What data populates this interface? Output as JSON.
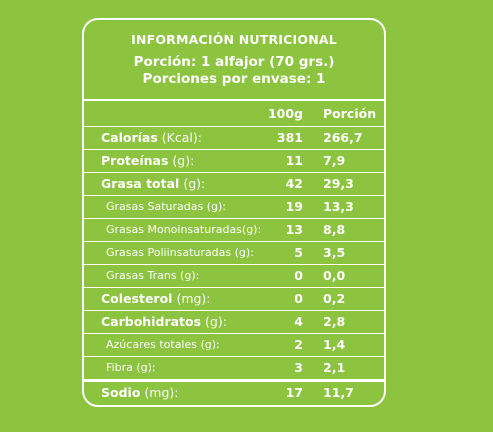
{
  "panel": {
    "title": "INFORMACIÓN NUTRICIONAL",
    "portion_line": "Porción: 1 alfajor (70 grs.)",
    "servings_line": "Porciones por envase: 1"
  },
  "columns": {
    "per100": "100g",
    "perPortion": "Porción"
  },
  "rows": [
    {
      "name": "Calorías",
      "unit": " (Kcal):",
      "per100": "381",
      "perPortion": "266,7"
    },
    {
      "name": "Proteínas",
      "unit": " (g):",
      "per100": "11",
      "perPortion": "7,9"
    },
    {
      "name": "Grasa total",
      "unit": " (g):",
      "per100": "42",
      "perPortion": "29,3"
    },
    {
      "name": "Grasas Saturadas (g):",
      "unit": "",
      "per100": "19",
      "perPortion": "13,3"
    },
    {
      "name": "Grasas Monoinsaturadas(g):",
      "unit": "",
      "per100": "13",
      "perPortion": "8,8"
    },
    {
      "name": "Grasas Poliinsaturadas (g):",
      "unit": "",
      "per100": "5",
      "perPortion": "3,5"
    },
    {
      "name": "Grasas Trans (g):",
      "unit": "",
      "per100": "0",
      "perPortion": "0,0"
    },
    {
      "name": "Colesterol",
      "unit": " (mg):",
      "per100": "0",
      "perPortion": "0,2"
    },
    {
      "name": "Carbohidratos",
      "unit": " (g):",
      "per100": "4",
      "perPortion": "2,8"
    },
    {
      "name": "Azúcares totales (g):",
      "unit": "",
      "per100": "2",
      "perPortion": "1,4"
    },
    {
      "name": "Fibra (g):",
      "unit": "",
      "per100": "3",
      "perPortion": "2,1"
    },
    {
      "name": "Sodio",
      "unit": " (mg):",
      "per100": "17",
      "perPortion": "11,7"
    }
  ],
  "colors": {
    "background": "#8cc43f",
    "foreground": "#ffffff"
  }
}
